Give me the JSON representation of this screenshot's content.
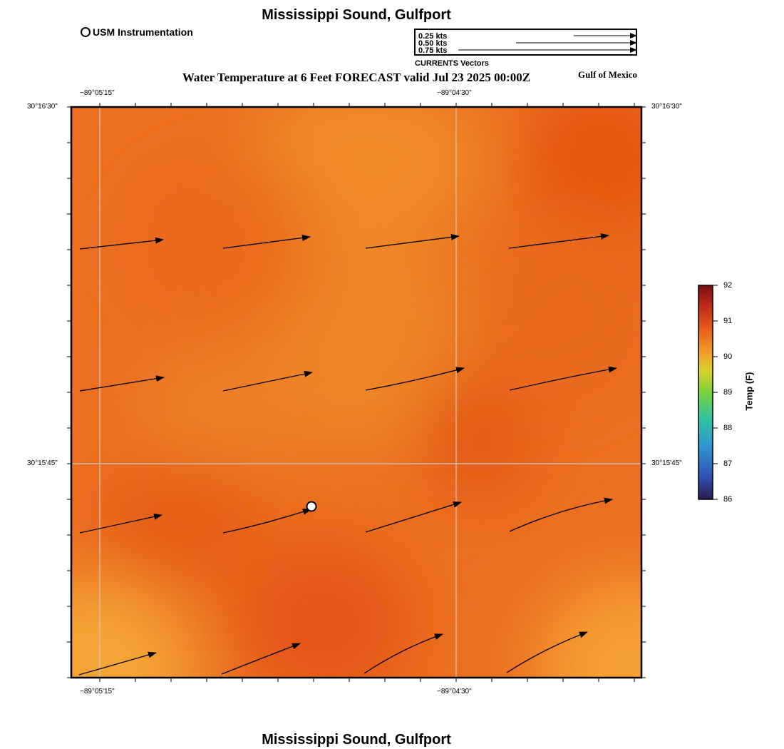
{
  "header": {
    "title": "Mississippi Sound, Gulfport",
    "subtitle": "Water Temperature at 6 Feet FORECAST valid Jul 23 2025 00:00Z",
    "region": "Gulf of Mexico",
    "usm_label": "USM Instrumentation"
  },
  "footer": {
    "title": "Mississippi Sound, Gulfport"
  },
  "vector_legend": {
    "entries": [
      "0.25 kts",
      "0.50 kts",
      "0.75 kts"
    ],
    "title": "CURRENTS Vectors"
  },
  "axes": {
    "lon_labels": [
      "−89°05'15\"",
      "−89°04'30\""
    ],
    "lat_labels": [
      "30°16'30\"",
      "30°15'45\""
    ]
  },
  "colorbar": {
    "title": "Temp (F)",
    "ticks": [
      "92",
      "91",
      "90",
      "89",
      "88",
      "87",
      "86"
    ],
    "range": [
      86,
      92
    ],
    "colors": [
      "#2b1a4d",
      "#2f5fc9",
      "#2fb5c9",
      "#3ccf6a",
      "#c8df2a",
      "#f0a02a",
      "#e8501a",
      "#b8201a",
      "#7a0f0f"
    ]
  },
  "map": {
    "field_colors": {
      "base": "#ec6f22",
      "light": "#f08a28",
      "dark": "#e45413",
      "sw": "#f5a535"
    },
    "station_marker": "usm-station"
  }
}
